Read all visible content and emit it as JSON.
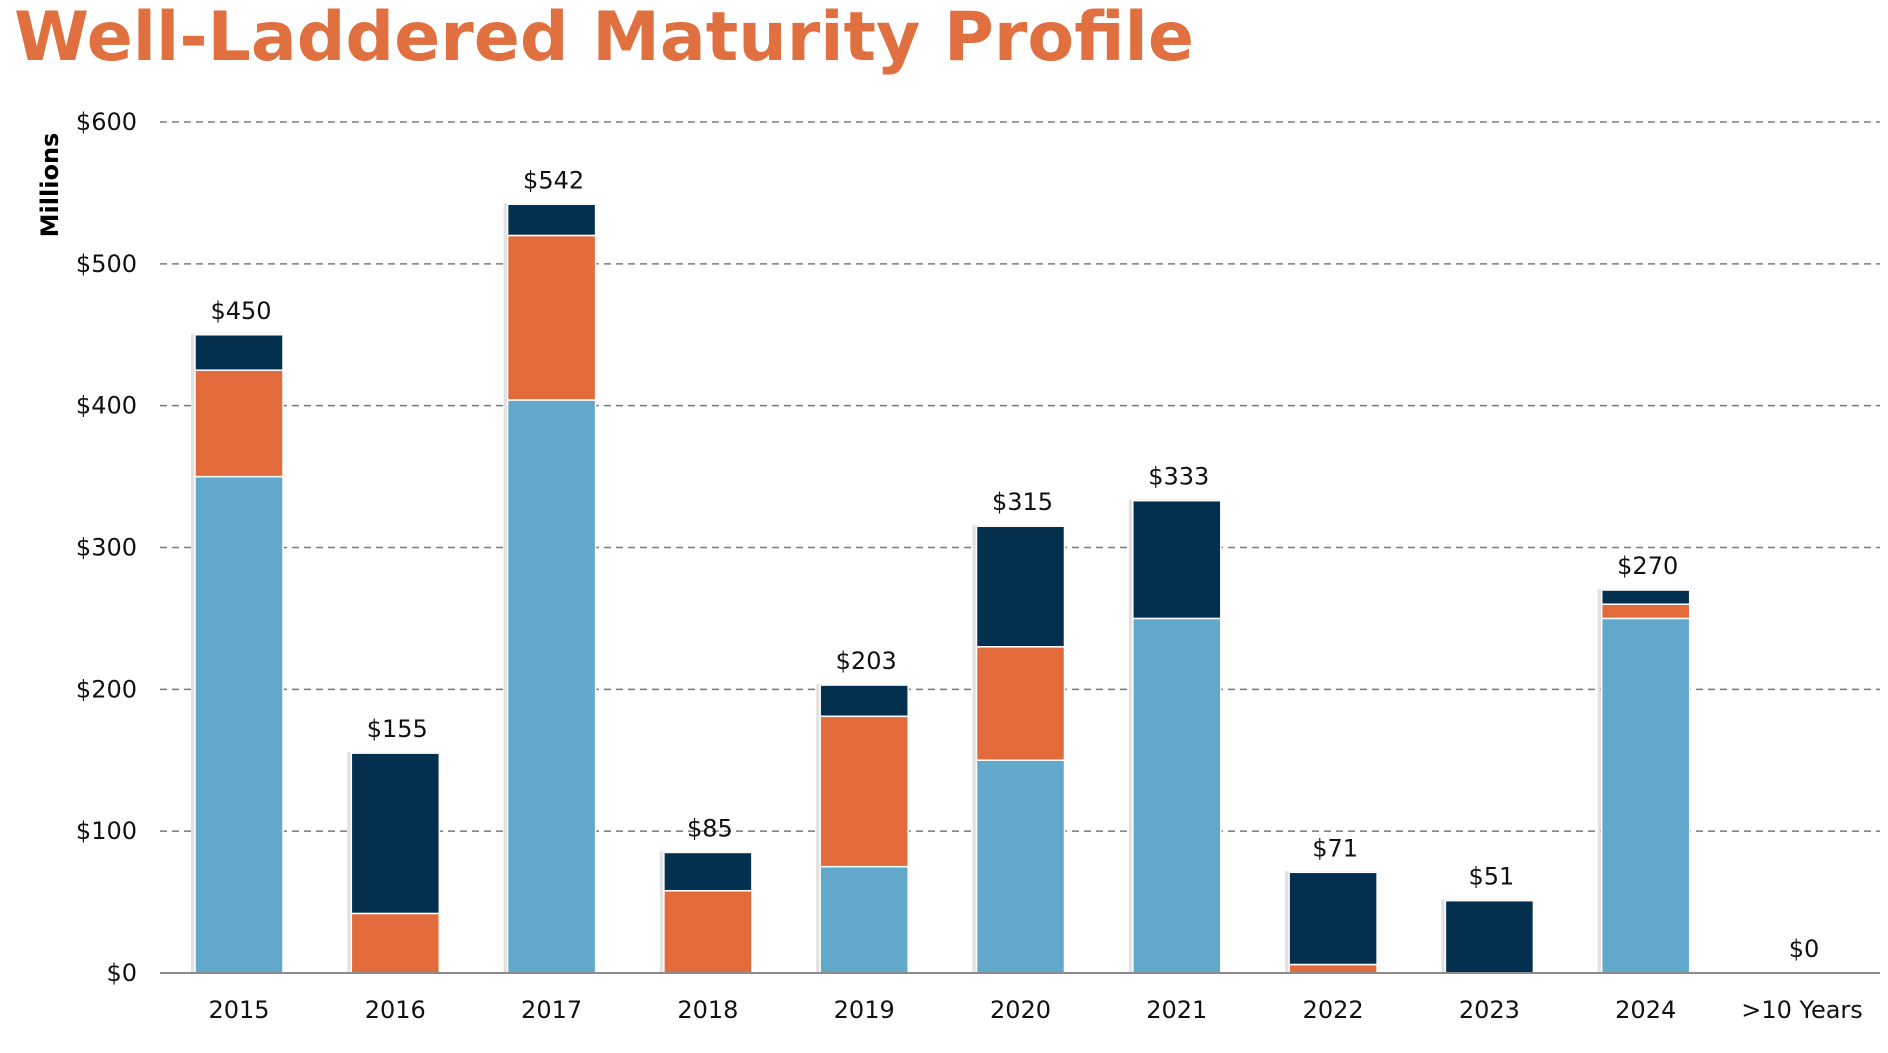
{
  "title": "Well-Laddered Maturity Profile",
  "chart_data": {
    "type": "bar",
    "stacked": true,
    "categories": [
      "2015",
      "2016",
      "2017",
      "2018",
      "2019",
      "2020",
      "2021",
      "2022",
      "2023",
      "2024",
      ">10 Years"
    ],
    "series": [
      {
        "color": "#62A8CA",
        "values": [
          350,
          0,
          404,
          0,
          75,
          150,
          250,
          0,
          0,
          250,
          0
        ]
      },
      {
        "color": "#E26B3C",
        "values": [
          75,
          42,
          116,
          58,
          106,
          80,
          0,
          6,
          0,
          10,
          0
        ]
      },
      {
        "color": "#04304F",
        "values": [
          25,
          113,
          22,
          27,
          22,
          85,
          83,
          65,
          51,
          10,
          0
        ]
      }
    ],
    "totals": [
      "$450",
      "$155",
      "$542",
      "$85",
      "$203",
      "$315",
      "$333",
      "$71",
      "$51",
      "$270",
      "$0"
    ],
    "ylabel": "Millions",
    "ylim": [
      0,
      600
    ],
    "yticks": [
      0,
      100,
      200,
      300,
      400,
      500,
      600
    ],
    "ytick_labels": [
      "$0",
      "$100",
      "$200",
      "$300",
      "$400",
      "$500",
      "$600"
    ],
    "grid": true,
    "grid_style": "dashed",
    "legend": "none"
  }
}
